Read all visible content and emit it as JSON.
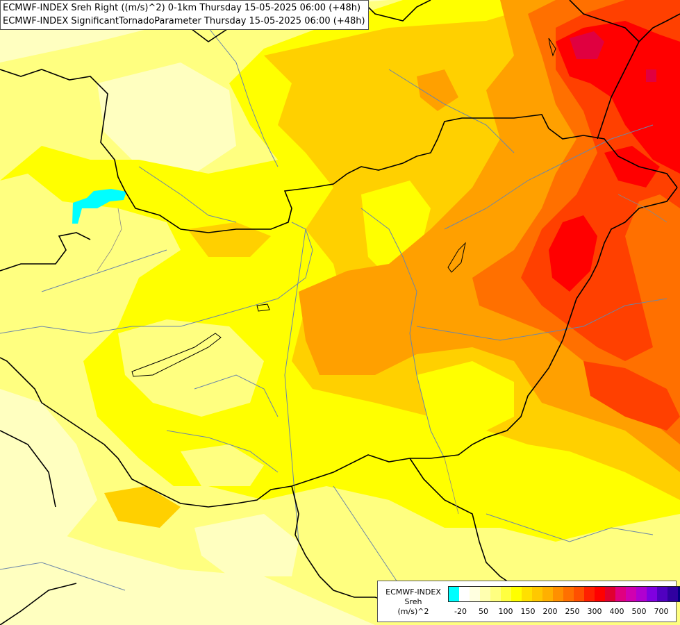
{
  "header": {
    "line1": "ECMWF-INDEX Sreh Right ((m/s)^2) 0-1km Thursday 15-05-2025 06:00 (+48h)",
    "line2": "ECMWF-INDEX SignificantTornadoParameter Thursday 15-05-2025 06:00 (+48h)"
  },
  "legend": {
    "model": "ECMWF-INDEX",
    "parameter": "Sreh",
    "unit": "(m/s)^2",
    "colors": [
      "#00ffff",
      "#ffffff",
      "#ffffe0",
      "#ffffb0",
      "#ffff80",
      "#ffff40",
      "#ffff00",
      "#ffe000",
      "#ffc800",
      "#ffb000",
      "#ff9000",
      "#ff7000",
      "#ff5000",
      "#ff2000",
      "#ff0000",
      "#e00030",
      "#e00080",
      "#d000b0",
      "#b000d0",
      "#8000e0",
      "#5000c0",
      "#3000a0",
      "#000080"
    ],
    "tick_labels": [
      "-20",
      "50",
      "100",
      "150",
      "200",
      "250",
      "300",
      "400",
      "500",
      "700"
    ]
  },
  "field_colors": {
    "pale": "#ffffc0",
    "light": "#ffff80",
    "yellow": "#ffff00",
    "gold": "#ffd000",
    "orange": "#ffa000",
    "dark_orange": "#ff7000",
    "red_orange": "#ff4000",
    "red": "#ff0000",
    "crimson": "#e00040",
    "cyan": "#00ffff"
  }
}
